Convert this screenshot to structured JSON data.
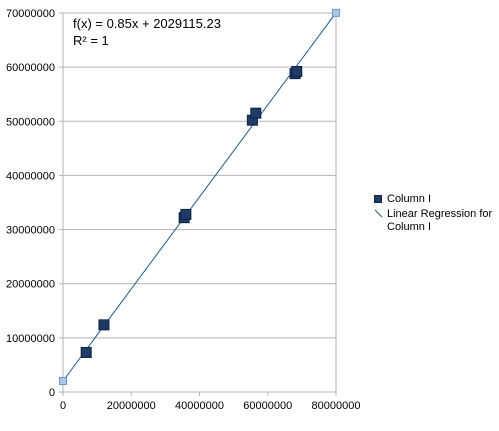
{
  "chart_data": {
    "type": "scatter",
    "title": "",
    "xlabel": "",
    "ylabel": "",
    "xlim": [
      0,
      80000000
    ],
    "ylim": [
      0,
      70000000
    ],
    "x_ticks": [
      "0",
      "20000000",
      "40000000",
      "60000000",
      "80000000"
    ],
    "y_ticks": [
      "0",
      "10000000",
      "20000000",
      "30000000",
      "40000000",
      "50000000",
      "60000000",
      "70000000"
    ],
    "grid": "horizontal",
    "legend_position": "right",
    "series": [
      {
        "name": "Column I",
        "color": "#1f3b66",
        "points": [
          [
            6800000,
            7300000
          ],
          [
            12000000,
            12400000
          ],
          [
            35500000,
            32200000
          ],
          [
            36000000,
            32800000
          ],
          [
            55500000,
            50200000
          ],
          [
            56500000,
            51500000
          ],
          [
            68000000,
            58800000
          ],
          [
            68500000,
            59200000
          ]
        ]
      }
    ],
    "regression": {
      "name": "Linear Regression for Column I",
      "slope": 0.85,
      "intercept": 2029115.23,
      "color": "#1f5a85",
      "endpoint_color": "#a8c8e8"
    },
    "annotation": {
      "equation": "f(x) = 0.85x + 2029115.23",
      "r_squared": "R² = 1"
    }
  }
}
